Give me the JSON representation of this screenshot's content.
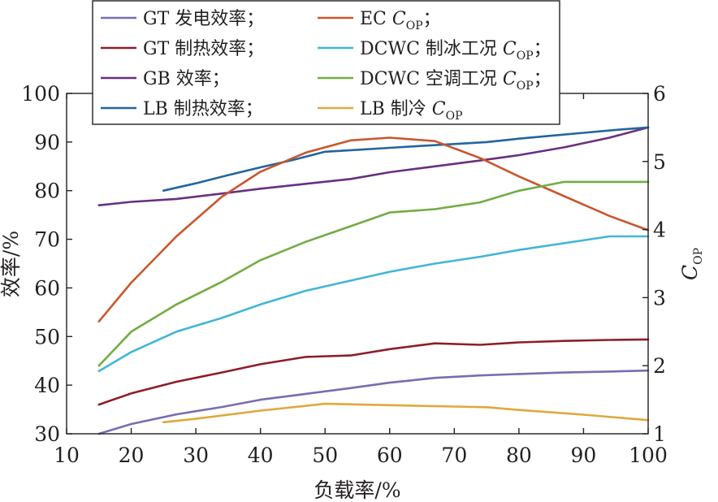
{
  "chart_data": {
    "type": "line",
    "xlabel": "负载率/%",
    "ylabel_left": "效率/%",
    "ylabel_right": {
      "main": "C",
      "sub": "OP"
    },
    "x_range": [
      10,
      100
    ],
    "x_ticks": [
      10,
      20,
      30,
      40,
      50,
      60,
      70,
      80,
      90,
      100
    ],
    "y_left_range": [
      30,
      100
    ],
    "y_left_ticks": [
      30,
      40,
      50,
      60,
      70,
      80,
      90,
      100
    ],
    "y_right_range": [
      1,
      6
    ],
    "y_right_ticks": [
      1,
      2,
      3,
      4,
      5,
      6
    ],
    "grid": false,
    "legend_placement": "top",
    "series": [
      {
        "name": "GT 发电效率；",
        "name_sub": "",
        "axis": "left",
        "color": "#7c6bb0",
        "x": [
          15,
          20,
          27,
          34,
          40,
          47,
          54,
          60,
          67,
          74,
          80,
          87,
          94,
          100
        ],
        "y": [
          30,
          32,
          34,
          35.5,
          37,
          38.2,
          39.4,
          40.5,
          41.5,
          42,
          42.3,
          42.6,
          42.8,
          43
        ]
      },
      {
        "name": "GT 制热效率；",
        "name_sub": "",
        "axis": "left",
        "color": "#8e1d2a",
        "x": [
          15,
          20,
          27,
          34,
          40,
          47,
          54,
          60,
          67,
          74,
          80,
          87,
          94,
          100
        ],
        "y": [
          36,
          38.3,
          40.7,
          42.6,
          44.3,
          45.8,
          46.1,
          47.4,
          48.6,
          48.3,
          48.8,
          49.1,
          49.3,
          49.4
        ]
      },
      {
        "name": "GB 效率；",
        "name_sub": "",
        "axis": "left",
        "color": "#6a2f82",
        "x": [
          15,
          20,
          27,
          34,
          40,
          47,
          54,
          60,
          67,
          74,
          80,
          87,
          94,
          100
        ],
        "y": [
          77,
          77.7,
          78.3,
          79.4,
          80.4,
          81.4,
          82.4,
          83.8,
          85,
          86.2,
          87.3,
          88.9,
          90.9,
          93
        ]
      },
      {
        "name": "LB 制热效率；",
        "name_sub": "",
        "axis": "left",
        "color": "#2166a0",
        "x": [
          25,
          30,
          35,
          40,
          45,
          50,
          55,
          60,
          65,
          70,
          75,
          80,
          85,
          90,
          95,
          100
        ],
        "y": [
          80,
          81.5,
          83.2,
          84.8,
          86.3,
          88,
          88.4,
          88.8,
          89.2,
          89.6,
          90,
          90.7,
          91.3,
          91.9,
          92.5,
          93
        ]
      },
      {
        "name": "EC C",
        "name_sub": "OP",
        "name_end": "；",
        "axis": "right",
        "color": "#c8572d",
        "x": [
          15,
          20,
          27,
          34,
          40,
          47,
          54,
          60,
          67,
          74,
          80,
          87,
          94,
          100
        ],
        "y": [
          2.65,
          3.22,
          3.9,
          4.48,
          4.85,
          5.13,
          5.31,
          5.35,
          5.3,
          5.05,
          4.78,
          4.49,
          4.2,
          3.99
        ]
      },
      {
        "name": "DCWC 制冰工况 C",
        "name_sub": "OP",
        "name_end": "；",
        "axis": "right",
        "color": "#41b5d9",
        "x": [
          15,
          20,
          27,
          34,
          40,
          47,
          54,
          60,
          67,
          74,
          80,
          87,
          94,
          100
        ],
        "y": [
          1.92,
          2.2,
          2.5,
          2.7,
          2.9,
          3.1,
          3.25,
          3.38,
          3.5,
          3.6,
          3.7,
          3.8,
          3.9,
          3.9
        ]
      },
      {
        "name": "DCWC 空调工况 C",
        "name_sub": "OP",
        "name_end": "；",
        "axis": "right",
        "color": "#73ac45",
        "x": [
          15,
          20,
          27,
          34,
          40,
          47,
          54,
          60,
          67,
          74,
          80,
          87,
          94,
          100
        ],
        "y": [
          2,
          2.5,
          2.9,
          3.23,
          3.55,
          3.82,
          4.05,
          4.25,
          4.3,
          4.4,
          4.57,
          4.7,
          4.7,
          4.7
        ]
      },
      {
        "name": "LB 制冷 C",
        "name_sub": "OP",
        "name_end": "",
        "axis": "right",
        "color": "#e0a83c",
        "x": [
          25,
          30,
          40,
          50,
          60,
          70,
          75,
          80,
          90,
          100
        ],
        "y": [
          1.17,
          1.22,
          1.34,
          1.44,
          1.42,
          1.4,
          1.39,
          1.35,
          1.28,
          1.2
        ]
      }
    ]
  }
}
